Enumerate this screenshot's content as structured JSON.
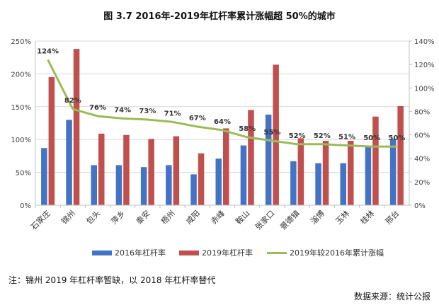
{
  "title": "图 3.7 2016年-2019年杠杆率累计涨幅超 50%的城市",
  "note": "注：锦州 2019 年杠杆率暂缺，以 2018 年杠杆率替代",
  "source": "数据来源：统计公报",
  "colors": {
    "series2016": "#4472C4",
    "series2019": "#C0504D",
    "growth": "#9BBB59",
    "grid": "#d9d9d9",
    "axis": "#bfbfbf"
  },
  "chart_data": {
    "type": "bar",
    "categories": [
      "石家庄",
      "锦州",
      "包头",
      "萍乡",
      "泰安",
      "梧州",
      "咸阳",
      "赤峰",
      "鞍山",
      "张家口",
      "景德镇",
      "淄博",
      "玉林",
      "桂林",
      "邢台"
    ],
    "series": [
      {
        "name": "2016年杠杆率",
        "type": "bar",
        "axis": "left",
        "values": [
          87,
          130,
          61,
          61,
          58,
          61,
          47,
          71,
          91,
          138,
          67,
          64,
          64,
          91,
          101
        ]
      },
      {
        "name": "2019年杠杆率",
        "type": "bar",
        "axis": "left",
        "values": [
          195,
          238,
          109,
          107,
          101,
          105,
          79,
          117,
          145,
          214,
          102,
          98,
          98,
          135,
          151
        ]
      },
      {
        "name": "2019年较2016年累计涨幅",
        "type": "line",
        "axis": "right",
        "values": [
          124,
          82,
          76,
          74,
          73,
          71,
          67,
          64,
          58,
          55,
          52,
          52,
          51,
          50,
          50
        ]
      }
    ],
    "data_labels": [
      "124%",
      "82%",
      "76%",
      "74%",
      "73%",
      "71%",
      "67%",
      "64%",
      "58%",
      "55%",
      "52%",
      "52%",
      "51%",
      "50%",
      "50%"
    ],
    "y_left": {
      "ylim": [
        0,
        250
      ],
      "ticks": [
        "0%",
        "50%",
        "100%",
        "150%",
        "200%",
        "250%"
      ]
    },
    "y_right": {
      "ylim": [
        0,
        140
      ],
      "ticks": [
        "0%",
        "20%",
        "40%",
        "60%",
        "80%",
        "100%",
        "120%",
        "140%"
      ]
    },
    "grid": true,
    "legend_position": "bottom"
  }
}
